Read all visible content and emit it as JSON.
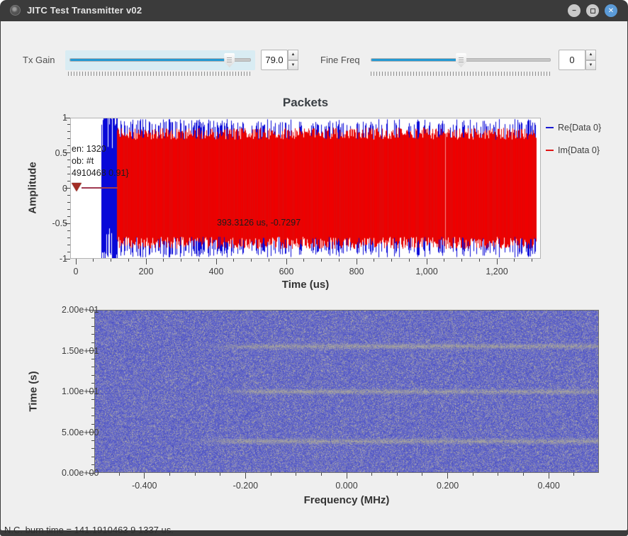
{
  "window": {
    "title": "JITC Test Transmitter v02",
    "buttons": {
      "minimize": "minimize",
      "maximize": "maximize",
      "close": "close"
    },
    "close_glyph": "✕",
    "minimize_glyph": "—"
  },
  "controls": {
    "tx_gain": {
      "label": "Tx Gain",
      "value": "79.0",
      "fraction": 0.88,
      "accent": "#2499d2",
      "panel_bg": "#d9ecf3"
    },
    "fine_freq": {
      "label": "Fine Freq",
      "value": "0",
      "fraction": 0.5,
      "accent": "#2499d2"
    }
  },
  "chart_data": [
    {
      "type": "line",
      "title": "Packets",
      "xlabel": "Time (us)",
      "ylabel": "Amplitude",
      "xlim": [
        0,
        1325
      ],
      "ylim": [
        -1,
        1
      ],
      "xticks": [
        0,
        200,
        400,
        600,
        800,
        1000,
        1200
      ],
      "xtick_labels": [
        "0",
        "200",
        "400",
        "600",
        "800",
        "1,000",
        "1,200"
      ],
      "xtick_minor_step": 50,
      "yticks": [
        1,
        0.5,
        0,
        -0.5,
        -1
      ],
      "ytick_labels": [
        "1",
        "0.5",
        "0",
        "-0.5",
        "-1"
      ],
      "ytick_minor_step": 0.1,
      "grid": false,
      "legend_position": "right",
      "legend": [
        {
          "label": "Re{Data 0}",
          "color": "#1a1ad2"
        },
        {
          "label": "Im{Data 0}",
          "color": "#e01414"
        }
      ],
      "signal": {
        "silence": {
          "start_us": 0,
          "end_us": 73,
          "amplitude": 0
        },
        "preamble_burst": {
          "start_us": 73,
          "end_us": 117,
          "amplitude": 1.03,
          "color": "#0808d8"
        },
        "payload": {
          "start_us": 117,
          "end_us": 1313,
          "amplitude": 0.86,
          "color": "#ee0000",
          "spike_color": "#0808d8",
          "gap_us": [
            1053
          ]
        }
      },
      "tag_marker": {
        "time_us": 8,
        "value": 0,
        "line_end_us": 120,
        "line_color": "#a03a50",
        "triangle_color": "#a22d24"
      },
      "tag_text_lines": [
        "en: 1320",
        "ob: #t",
        "4910468 0.91}"
      ],
      "hover_readout": "393.3126 us, -0.7297"
    },
    {
      "type": "heatmap",
      "title": "",
      "xlabel": "Frequency (MHz)",
      "ylabel": "Time (s)",
      "xlim": [
        -0.5,
        0.5
      ],
      "ylim": [
        0,
        20
      ],
      "xticks": [
        -0.4,
        -0.2,
        0.0,
        0.2,
        0.4
      ],
      "xtick_labels": [
        "-0.400",
        "-0.200",
        "0.000",
        "0.200",
        "0.400"
      ],
      "xtick_minor_step": 0.05,
      "yticks": [
        20,
        15,
        10,
        5,
        0
      ],
      "ytick_labels": [
        "2.00e+01",
        "1.50e+01",
        "1.00e+01",
        "5.00e+00",
        "0.00e+00"
      ],
      "ytick_minor_step": 1,
      "noise_colors": {
        "blue_lo": [
          72,
          78,
          196
        ],
        "blue_hi": [
          122,
          124,
          202
        ],
        "gray_lo": [
          130,
          130,
          165
        ],
        "gray_hi": [
          176,
          173,
          178
        ]
      },
      "bands": [
        {
          "time_s": 15.6,
          "start_mhz": -0.28,
          "end_mhz": 0.5,
          "color": [
            160,
            157,
            140
          ]
        },
        {
          "time_s": 10.0,
          "start_mhz": -0.27,
          "end_mhz": 0.5,
          "color": [
            160,
            157,
            140
          ]
        },
        {
          "time_s": 3.9,
          "start_mhz": -0.31,
          "end_mhz": 0.5,
          "color": [
            160,
            157,
            140
          ]
        }
      ]
    }
  ],
  "status_bar": {
    "text": "N.C. burn time = 141.1910463 9 1337 us."
  }
}
